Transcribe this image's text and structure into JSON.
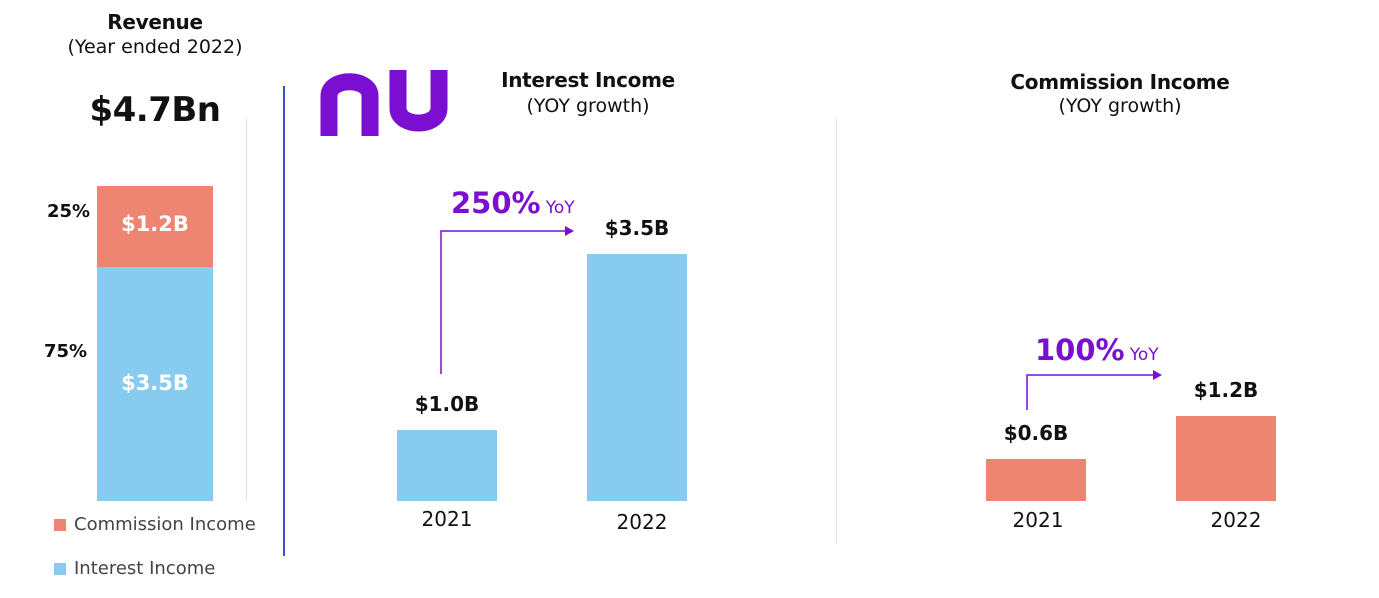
{
  "colors": {
    "interest": "#88CBF1",
    "commission": "#EE8472",
    "accent": "#7A0FD1",
    "divider": "#3A4FCB"
  },
  "logo": {
    "text": "nu",
    "icon": "nubank-logo"
  },
  "revenue_panel": {
    "title": "Revenue",
    "subtitle": "(Year ended 2022)",
    "total": "$4.7Bn",
    "commission_pct": "25%",
    "interest_pct": "75%",
    "commission_label": "$1.2B",
    "interest_label": "$3.5B"
  },
  "legend": {
    "commission": "Commission Income",
    "interest": "Interest Income"
  },
  "interest_panel": {
    "title": "Interest Income",
    "subtitle": "(YOY growth)",
    "growth": "250%",
    "growth_unit": "YoY",
    "years": [
      "2021",
      "2022"
    ],
    "labels": [
      "$1.0B",
      "$3.5B"
    ]
  },
  "commission_panel": {
    "title": "Commission Income",
    "subtitle": "(YOY growth)",
    "growth": "100%",
    "growth_unit": "YoY",
    "years": [
      "2021",
      "2022"
    ],
    "labels": [
      "$0.6B",
      "$1.2B"
    ]
  },
  "chart_data": [
    {
      "type": "bar",
      "stacked": true,
      "title": "Revenue",
      "subtitle": "(Year ended 2022)",
      "categories": [
        "2022"
      ],
      "series": [
        {
          "name": "Interest Income",
          "values": [
            3.5
          ]
        },
        {
          "name": "Commission Income",
          "values": [
            1.2
          ]
        }
      ],
      "total": 4.7,
      "shares_pct": {
        "Interest Income": 75,
        "Commission Income": 25
      }
    },
    {
      "type": "bar",
      "title": "Interest Income",
      "subtitle": "(YOY growth)",
      "categories": [
        "2021",
        "2022"
      ],
      "values": [
        1.0,
        3.5
      ],
      "growth_pct": 250
    },
    {
      "type": "bar",
      "title": "Commission Income",
      "subtitle": "(YOY growth)",
      "categories": [
        "2021",
        "2022"
      ],
      "values": [
        0.6,
        1.2
      ],
      "growth_pct": 100
    }
  ]
}
